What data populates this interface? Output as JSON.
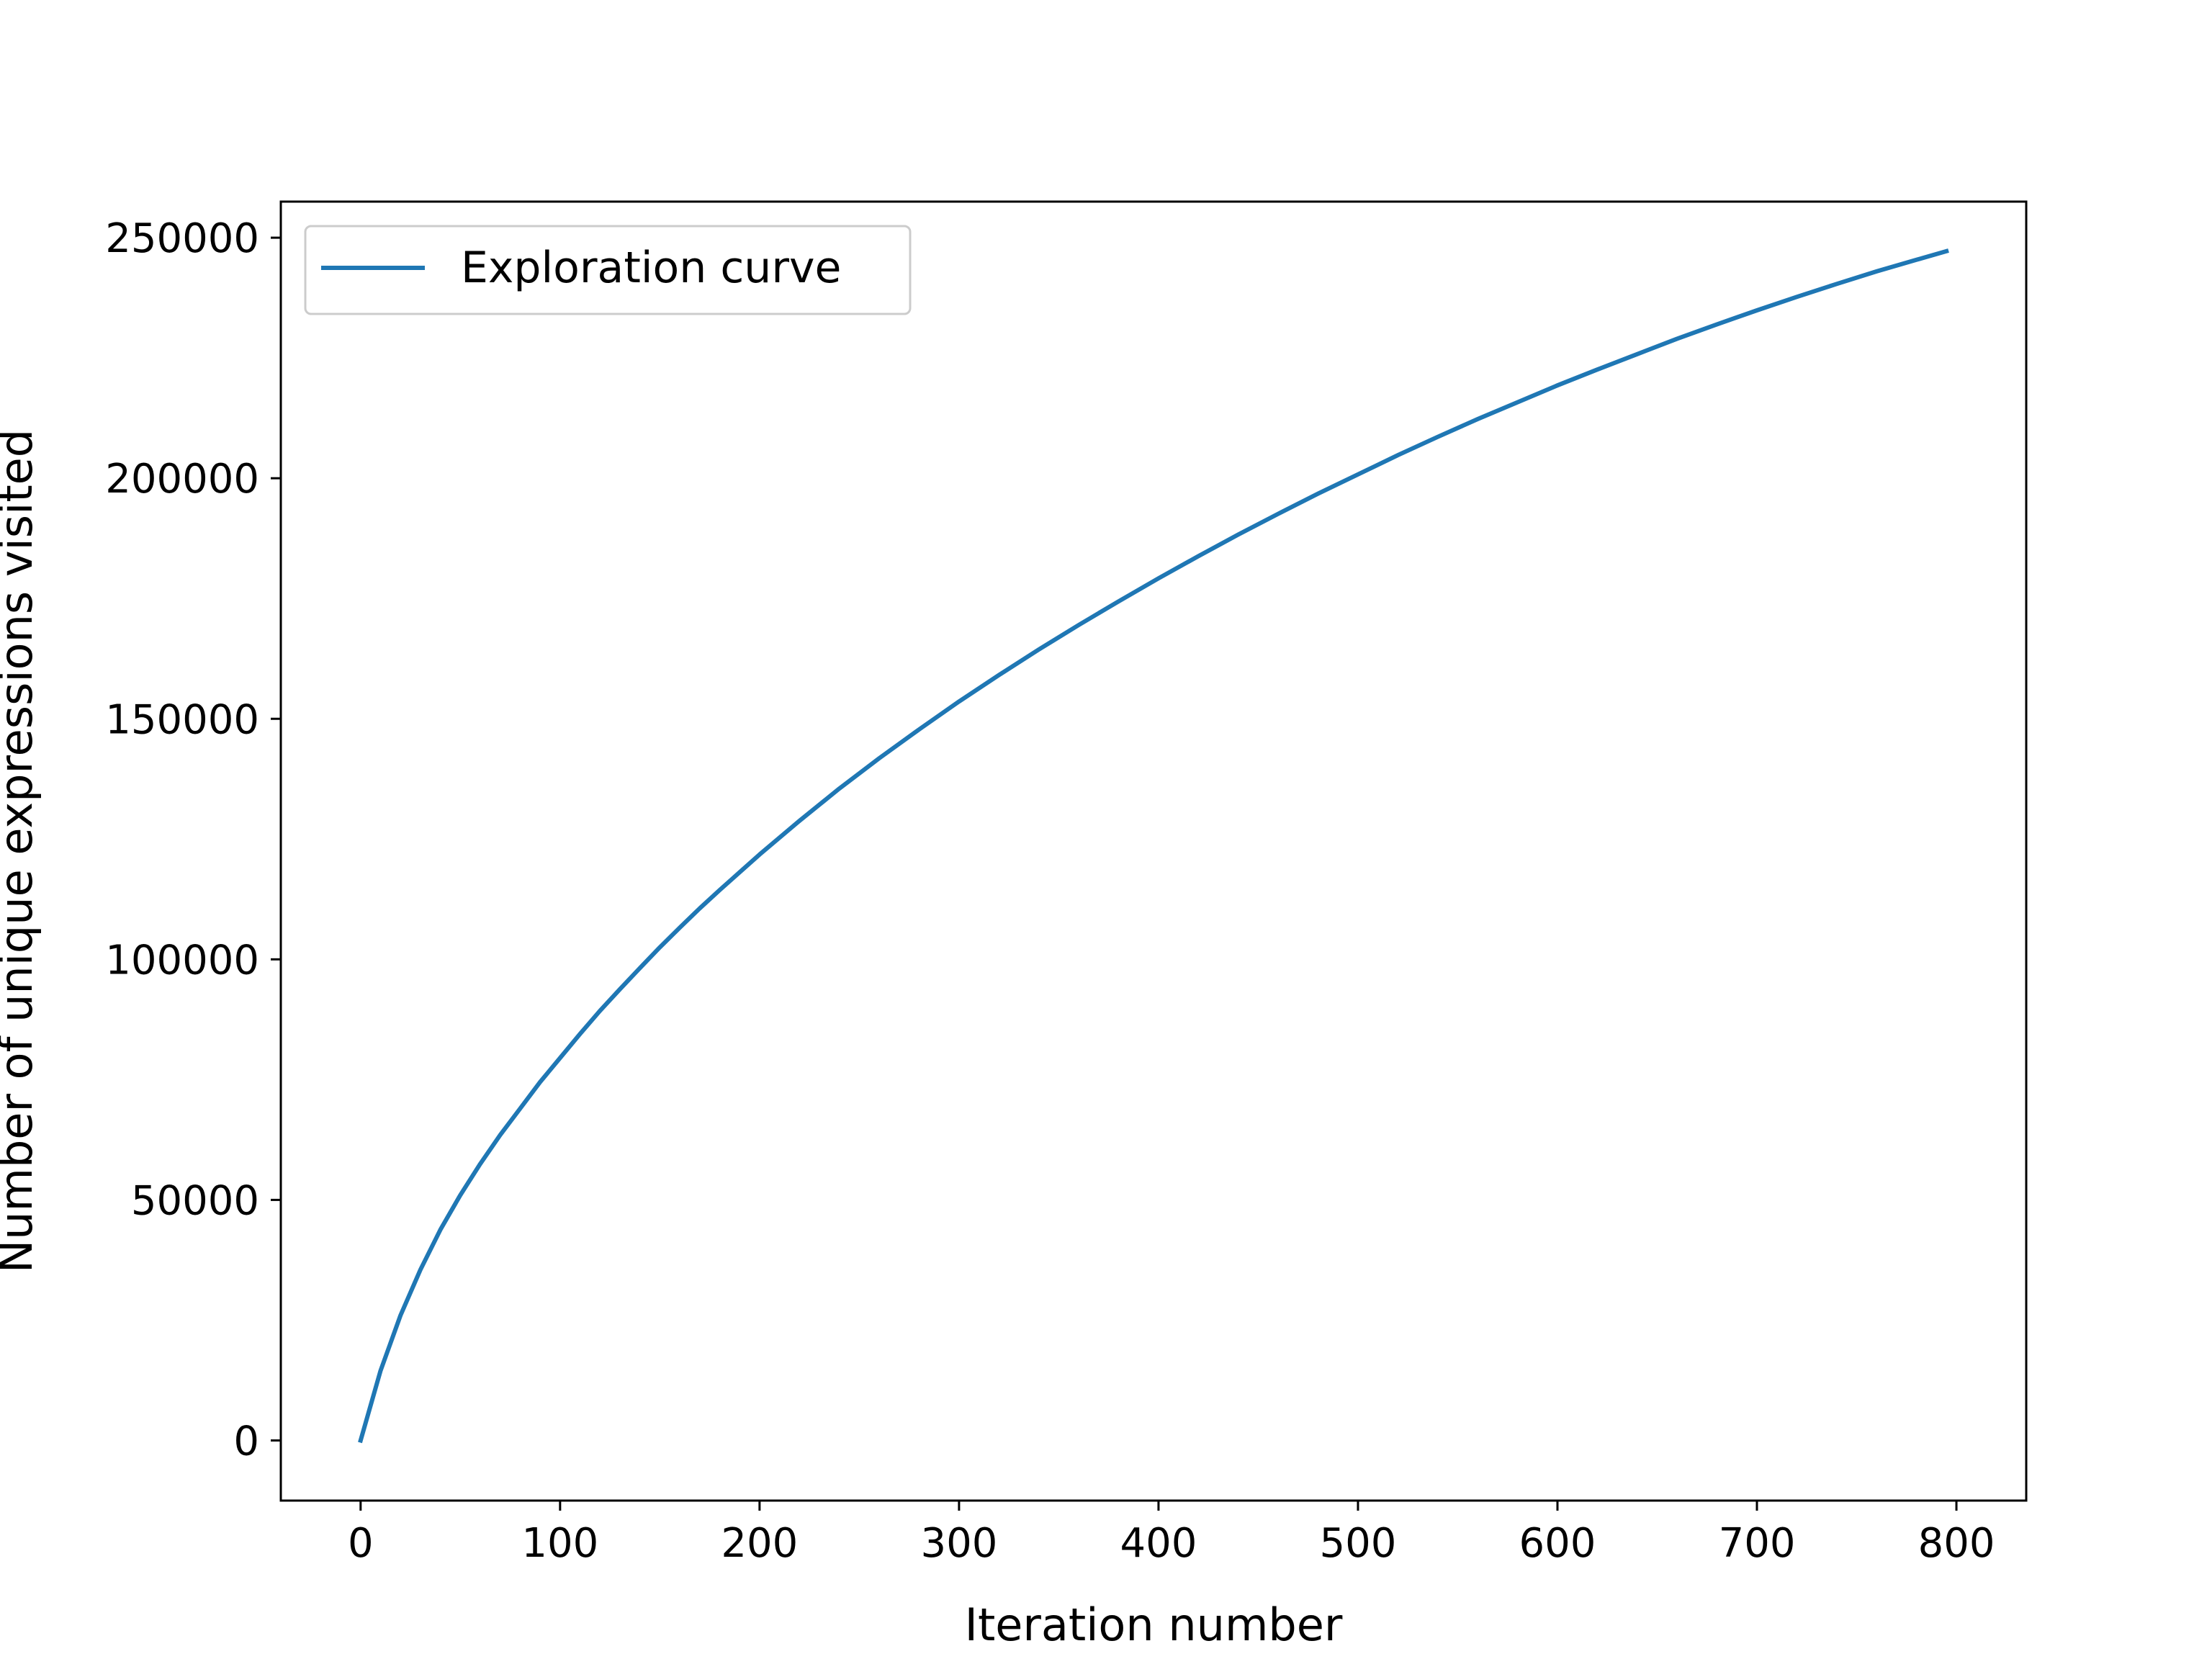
{
  "chart_data": {
    "type": "line",
    "title": "",
    "xlabel": "Iteration number",
    "ylabel": "Number of unique expressions visited",
    "xlim": [
      -40,
      835
    ],
    "ylim": [
      -12500,
      257500
    ],
    "x_ticks": [
      0,
      100,
      200,
      300,
      400,
      500,
      600,
      700,
      800
    ],
    "x_tick_labels": [
      "0",
      "100",
      "200",
      "300",
      "400",
      "500",
      "600",
      "700",
      "800"
    ],
    "y_ticks": [
      0,
      50000,
      100000,
      150000,
      200000,
      250000
    ],
    "y_tick_labels": [
      "0",
      "50000",
      "100000",
      "150000",
      "200000",
      "250000"
    ],
    "grid": false,
    "legend_position": "upper left",
    "series": [
      {
        "name": "Exploration curve",
        "color": "#1f77b4",
        "x": [
          0,
          10,
          20,
          30,
          40,
          50,
          60,
          70,
          80,
          90,
          100,
          110,
          120,
          130,
          140,
          150,
          160,
          170,
          180,
          190,
          200,
          220,
          240,
          260,
          280,
          300,
          320,
          340,
          360,
          380,
          400,
          420,
          440,
          460,
          480,
          500,
          520,
          540,
          560,
          580,
          600,
          620,
          640,
          660,
          680,
          700,
          720,
          740,
          760,
          780,
          795
        ],
        "y": [
          0,
          14500,
          26000,
          35500,
          43800,
          51000,
          57500,
          63500,
          69000,
          74500,
          79500,
          84500,
          89300,
          93800,
          98200,
          102500,
          106600,
          110600,
          114400,
          118100,
          121800,
          128800,
          135500,
          141800,
          147800,
          153600,
          159100,
          164400,
          169500,
          174400,
          179200,
          183800,
          188300,
          192600,
          196800,
          200800,
          204800,
          208600,
          212300,
          215800,
          219300,
          222600,
          225800,
          229000,
          232000,
          234900,
          237700,
          240400,
          243000,
          245400,
          247200
        ]
      }
    ]
  }
}
